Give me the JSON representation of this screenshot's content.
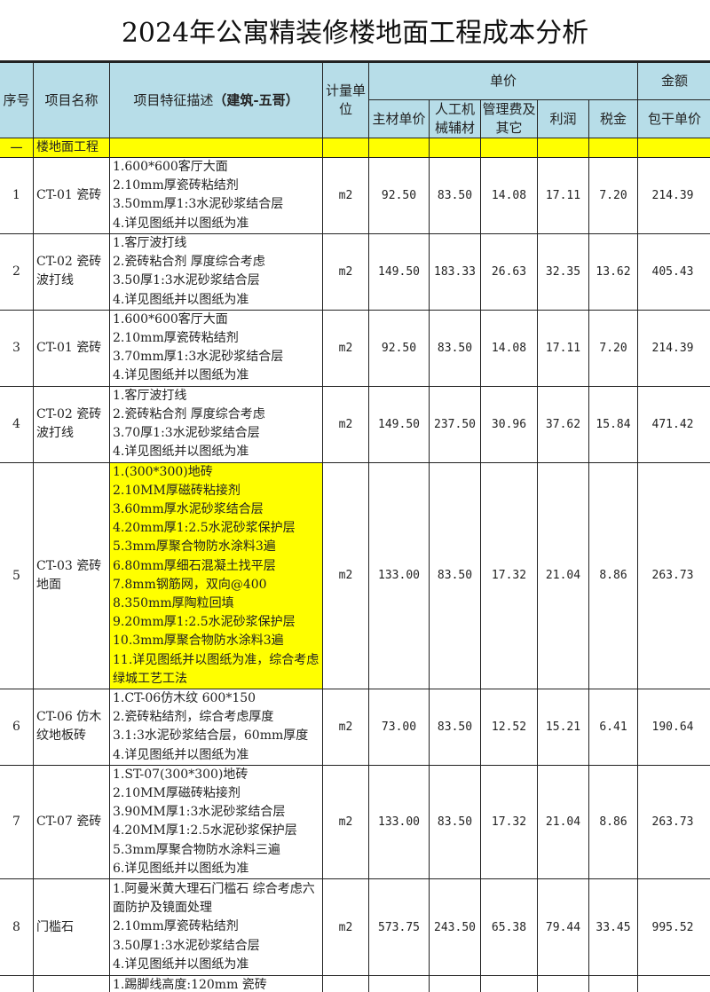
{
  "title": "2024年公寓精装修楼地面工程成本分析",
  "headers": {
    "seq": "序号",
    "name": "项目名称",
    "desc_prefix": "项目特征描述",
    "desc_bold": "（建筑-五哥）",
    "unit": "计量单位",
    "unit_price": "单价",
    "material": "主材单价",
    "labor": "人工机械辅材",
    "mgmt": "管理费及其它",
    "profit": "利润",
    "tax": "税金",
    "amount": "金额",
    "total": "包干单价"
  },
  "section": {
    "seq": "一",
    "name": "楼地面工程"
  },
  "rows": [
    {
      "seq": "1",
      "name": "CT-01 瓷砖",
      "desc": "1.600*600客厅大面\n2.10mm厚瓷砖粘结剂\n3.50mm厚1:3水泥砂浆结合层\n4.详见图纸并以图纸为准",
      "unit": "m2",
      "material": "92.50",
      "labor": "83.50",
      "mgmt": "14.08",
      "profit": "17.11",
      "tax": "7.20",
      "total": "214.39",
      "highlight": false
    },
    {
      "seq": "2",
      "name": "CT-02 瓷砖波打线",
      "desc": "1.客厅波打线\n2.瓷砖粘合剂 厚度综合考虑\n3.50厚1:3水泥砂浆结合层\n4.详见图纸并以图纸为准",
      "unit": "m2",
      "material": "149.50",
      "labor": "183.33",
      "mgmt": "26.63",
      "profit": "32.35",
      "tax": "13.62",
      "total": "405.43",
      "highlight": false
    },
    {
      "seq": "3",
      "name": "CT-01 瓷砖",
      "desc": "1.600*600客厅大面\n2.10mm厚瓷砖粘结剂\n3.70mm厚1:3水泥砂浆结合层\n4.详见图纸并以图纸为准",
      "unit": "m2",
      "material": "92.50",
      "labor": "83.50",
      "mgmt": "14.08",
      "profit": "17.11",
      "tax": "7.20",
      "total": "214.39",
      "highlight": false
    },
    {
      "seq": "4",
      "name": "CT-02 瓷砖波打线",
      "desc": "1.客厅波打线\n2.瓷砖粘合剂 厚度综合考虑\n3.70厚1:3水泥砂浆结合层\n4.详见图纸并以图纸为准",
      "unit": "m2",
      "material": "149.50",
      "labor": "237.50",
      "mgmt": "30.96",
      "profit": "37.62",
      "tax": "15.84",
      "total": "471.42",
      "highlight": false
    },
    {
      "seq": "5",
      "name": "CT-03 瓷砖地面",
      "desc": "1.(300*300)地砖\n2.10MM厚磁砖粘接剂\n3.60mm厚水泥砂浆结合层\n4.20mm厚1:2.5水泥砂浆保护层\n5.3mm厚聚合物防水涂料3遍\n6.80mm厚细石混凝土找平层\n7.8mm钢筋网，双向@400\n8.350mm厚陶粒回填\n9.20mm厚1:2.5水泥砂浆保护层\n10.3mm厚聚合物防水涂料3遍\n11.详见图纸并以图纸为准，综合考虑绿城工艺工法",
      "unit": "m2",
      "material": "133.00",
      "labor": "83.50",
      "mgmt": "17.32",
      "profit": "21.04",
      "tax": "8.86",
      "total": "263.73",
      "highlight": true
    },
    {
      "seq": "6",
      "name": "CT-06 仿木纹地板砖",
      "desc": "1.CT-06仿木纹 600*150\n2.瓷砖粘结剂，综合考虑厚度\n3.1:3水泥砂浆结合层，60mm厚度\n4.详见图纸并以图纸为准",
      "unit": "m2",
      "material": "73.00",
      "labor": "83.50",
      "mgmt": "12.52",
      "profit": "15.21",
      "tax": "6.41",
      "total": "190.64",
      "highlight": false
    },
    {
      "seq": "7",
      "name": "CT-07 瓷砖",
      "desc": "1.ST-07(300*300)地砖\n2.10MM厚磁砖粘接剂\n3.90MM厚1:3水泥砂浆结合层\n4.20MM厚1:2.5水泥砂浆保护层\n5.3mm厚聚合物防水涂料三遍\n6.详见图纸并以图纸为准",
      "unit": "m2",
      "material": "133.00",
      "labor": "83.50",
      "mgmt": "17.32",
      "profit": "21.04",
      "tax": "8.86",
      "total": "263.73",
      "highlight": false
    },
    {
      "seq": "8",
      "name": "门槛石",
      "desc": "1.阿曼米黄大理石门槛石 综合考虑六面防护及镜面处理\n2.10mm厚瓷砖粘结剂\n3.50厚1:3水泥砂浆结合层\n4.详见图纸并以图纸为准",
      "unit": "m2",
      "material": "573.75",
      "labor": "243.50",
      "mgmt": "65.38",
      "profit": "79.44",
      "tax": "33.45",
      "total": "995.52",
      "highlight": false
    },
    {
      "seq": "",
      "name": "",
      "desc": "1.踢脚线高度:120mm 瓷砖",
      "unit": "",
      "material": "",
      "labor": "",
      "mgmt": "",
      "profit": "",
      "tax": "",
      "total": "",
      "highlight": false
    }
  ]
}
